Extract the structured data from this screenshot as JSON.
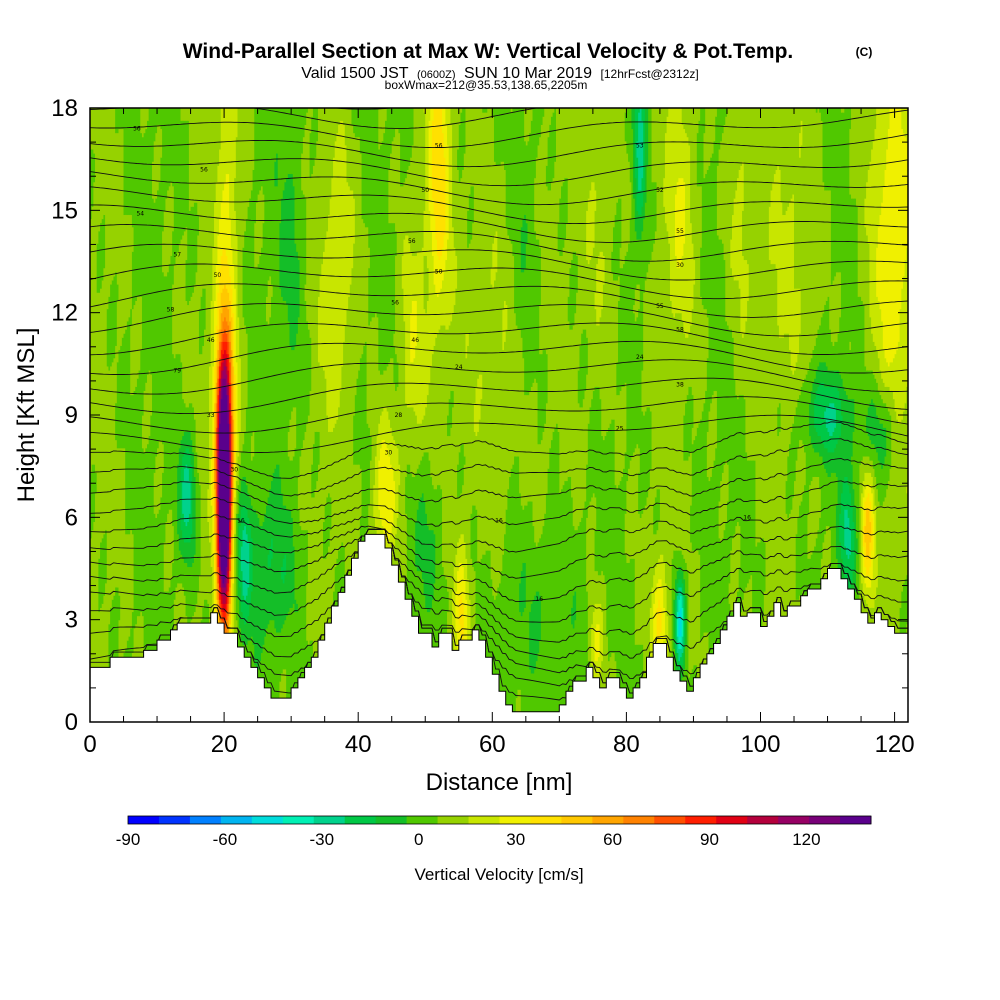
{
  "chart_data": {
    "type": "heatmap",
    "title": "Wind-Parallel Section at Max W: Vertical Velocity & Pot.Temp.",
    "title_mark": "(C)",
    "subtitle": {
      "valid_prefix": "Valid 1500 JST",
      "utc": "(0600Z)",
      "date": "SUN 10 Mar 2019",
      "forecast": "[12hrFcst@2312z]",
      "boxwmax": "boxWmax=212@35.53,138.65,2205m"
    },
    "xlabel": "Distance [nm]",
    "ylabel": "Height [Kft MSL]",
    "xlim": [
      0,
      122
    ],
    "ylim": [
      0,
      18
    ],
    "x_ticks": [
      0,
      20,
      40,
      60,
      80,
      100,
      120
    ],
    "y_ticks": [
      0,
      3,
      6,
      9,
      12,
      15,
      18
    ],
    "colorbar": {
      "label": "Vertical Velocity [cm/s]",
      "range": [
        -90,
        140
      ],
      "step": 10,
      "ticks": [
        -90,
        -60,
        -30,
        0,
        30,
        60,
        90,
        120
      ],
      "colors": [
        "#0000ff",
        "#0033ff",
        "#0080ff",
        "#00b4f0",
        "#00dcdc",
        "#00f0b4",
        "#00d28c",
        "#00c846",
        "#14be28",
        "#50c800",
        "#96d200",
        "#c8e600",
        "#f0f000",
        "#ffe100",
        "#ffc800",
        "#ffa500",
        "#ff8200",
        "#ff5000",
        "#ff1e00",
        "#e10014",
        "#b4003c",
        "#960064",
        "#780078",
        "#5a008c"
      ]
    },
    "terrain_kft": [
      [
        0,
        1.6
      ],
      [
        3,
        1.6
      ],
      [
        3,
        1.9
      ],
      [
        5,
        1.9
      ],
      [
        5,
        1.9
      ],
      [
        8,
        1.9
      ],
      [
        8,
        2.1
      ],
      [
        10,
        2.1
      ],
      [
        10,
        2.4
      ],
      [
        12,
        2.4
      ],
      [
        12,
        2.7
      ],
      [
        13,
        2.7
      ],
      [
        13,
        2.9
      ],
      [
        15,
        2.9
      ],
      [
        15,
        2.9
      ],
      [
        17,
        2.9
      ],
      [
        18,
        2.9
      ],
      [
        18,
        3.2
      ],
      [
        19,
        3.2
      ],
      [
        19,
        2.9
      ],
      [
        20,
        2.9
      ],
      [
        20,
        2.6
      ],
      [
        22,
        2.6
      ],
      [
        22,
        2.2
      ],
      [
        23,
        2.2
      ],
      [
        23,
        1.9
      ],
      [
        24,
        1.9
      ],
      [
        24,
        1.6
      ],
      [
        25,
        1.6
      ],
      [
        25,
        1.3
      ],
      [
        26,
        1.3
      ],
      [
        26,
        1.0
      ],
      [
        27,
        1.0
      ],
      [
        27,
        0.7
      ],
      [
        30,
        0.7
      ],
      [
        30,
        1.0
      ],
      [
        31,
        1.0
      ],
      [
        31,
        1.3
      ],
      [
        32,
        1.3
      ],
      [
        32,
        1.6
      ],
      [
        33,
        1.6
      ],
      [
        33,
        1.9
      ],
      [
        34,
        1.9
      ],
      [
        34,
        2.4
      ],
      [
        35,
        2.4
      ],
      [
        35,
        2.9
      ],
      [
        36,
        2.9
      ],
      [
        36,
        3.4
      ],
      [
        37,
        3.4
      ],
      [
        37,
        3.8
      ],
      [
        38,
        3.8
      ],
      [
        38,
        4.3
      ],
      [
        39,
        4.3
      ],
      [
        39,
        4.8
      ],
      [
        40,
        4.8
      ],
      [
        40,
        5.3
      ],
      [
        41,
        5.3
      ],
      [
        41,
        5.5
      ],
      [
        44,
        5.5
      ],
      [
        44,
        5.1
      ],
      [
        45,
        5.1
      ],
      [
        45,
        4.6
      ],
      [
        46,
        4.6
      ],
      [
        46,
        4.1
      ],
      [
        47,
        4.1
      ],
      [
        47,
        3.6
      ],
      [
        48,
        3.6
      ],
      [
        48,
        3.1
      ],
      [
        49,
        3.1
      ],
      [
        49,
        2.6
      ],
      [
        51,
        2.6
      ],
      [
        51,
        2.2
      ],
      [
        52,
        2.2
      ],
      [
        52,
        2.6
      ],
      [
        54,
        2.6
      ],
      [
        54,
        2.1
      ],
      [
        55,
        2.1
      ],
      [
        55,
        2.4
      ],
      [
        57,
        2.4
      ],
      [
        57,
        2.7
      ],
      [
        58,
        2.7
      ],
      [
        58,
        2.4
      ],
      [
        59,
        2.4
      ],
      [
        59,
        1.9
      ],
      [
        60,
        1.9
      ],
      [
        60,
        1.4
      ],
      [
        61,
        1.4
      ],
      [
        61,
        0.9
      ],
      [
        62,
        0.9
      ],
      [
        62,
        0.5
      ],
      [
        63,
        0.5
      ],
      [
        63,
        0.3
      ],
      [
        70,
        0.3
      ],
      [
        70,
        0.5
      ],
      [
        71,
        0.5
      ],
      [
        71,
        0.9
      ],
      [
        72,
        0.9
      ],
      [
        72,
        1.2
      ],
      [
        74,
        1.2
      ],
      [
        74,
        1.6
      ],
      [
        75,
        1.6
      ],
      [
        75,
        1.3
      ],
      [
        76,
        1.3
      ],
      [
        76,
        1.0
      ],
      [
        77,
        1.0
      ],
      [
        77,
        1.3
      ],
      [
        79,
        1.3
      ],
      [
        79,
        1.0
      ],
      [
        80,
        1.0
      ],
      [
        80,
        0.7
      ],
      [
        81,
        0.7
      ],
      [
        81,
        1.0
      ],
      [
        82,
        1.0
      ],
      [
        82,
        1.3
      ],
      [
        83,
        1.3
      ],
      [
        83,
        1.9
      ],
      [
        84,
        1.9
      ],
      [
        84,
        2.3
      ],
      [
        86,
        2.3
      ],
      [
        86,
        1.9
      ],
      [
        87,
        1.9
      ],
      [
        87,
        1.5
      ],
      [
        88,
        1.5
      ],
      [
        88,
        1.2
      ],
      [
        89,
        1.2
      ],
      [
        89,
        0.9
      ],
      [
        90,
        0.9
      ],
      [
        90,
        1.3
      ],
      [
        91,
        1.3
      ],
      [
        91,
        1.7
      ],
      [
        92,
        1.7
      ],
      [
        92,
        2.0
      ],
      [
        93,
        2.0
      ],
      [
        93,
        2.3
      ],
      [
        94,
        2.3
      ],
      [
        94,
        2.7
      ],
      [
        95,
        2.7
      ],
      [
        95,
        3.1
      ],
      [
        96,
        3.1
      ],
      [
        96,
        3.5
      ],
      [
        97,
        3.5
      ],
      [
        97,
        3.1
      ],
      [
        98,
        3.1
      ],
      [
        98,
        3.2
      ],
      [
        100,
        3.2
      ],
      [
        100,
        2.8
      ],
      [
        101,
        2.8
      ],
      [
        101,
        3.1
      ],
      [
        102,
        3.1
      ],
      [
        102,
        3.5
      ],
      [
        103,
        3.5
      ],
      [
        103,
        3.1
      ],
      [
        104,
        3.1
      ],
      [
        104,
        3.4
      ],
      [
        106,
        3.4
      ],
      [
        106,
        3.7
      ],
      [
        107,
        3.7
      ],
      [
        107,
        3.9
      ],
      [
        109,
        3.9
      ],
      [
        109,
        4.2
      ],
      [
        110,
        4.2
      ],
      [
        110,
        4.5
      ],
      [
        112,
        4.5
      ],
      [
        112,
        4.2
      ],
      [
        113,
        4.2
      ],
      [
        113,
        3.9
      ],
      [
        114,
        3.9
      ],
      [
        114,
        3.6
      ],
      [
        115,
        3.6
      ],
      [
        115,
        3.2
      ],
      [
        116,
        3.2
      ],
      [
        116,
        2.9
      ],
      [
        117,
        2.9
      ],
      [
        117,
        3.2
      ],
      [
        118,
        3.2
      ],
      [
        118,
        3.0
      ],
      [
        119,
        3.0
      ],
      [
        119,
        2.8
      ],
      [
        120,
        2.8
      ],
      [
        120,
        2.6
      ],
      [
        122,
        2.6
      ]
    ],
    "velocity_features": [
      {
        "x": 20,
        "z": 6.5,
        "sx": 0.75,
        "sz": 2.6,
        "w": 190
      },
      {
        "x": 20,
        "z": 9.3,
        "sx": 1.2,
        "sz": 2.0,
        "w": 35
      },
      {
        "x": 20.5,
        "z": 14,
        "sx": 1.2,
        "sz": 4,
        "w": 22
      },
      {
        "x": 14.5,
        "z": 6.6,
        "sx": 0.9,
        "sz": 1.3,
        "w": -35
      },
      {
        "x": 23,
        "z": 5,
        "sx": 0.7,
        "sz": 1.5,
        "w": -28
      },
      {
        "x": 27,
        "z": 4.5,
        "sx": 3,
        "sz": 1.6,
        "w": -18
      },
      {
        "x": 44,
        "z": 6.6,
        "sx": 1.3,
        "sz": 1.6,
        "w": 32
      },
      {
        "x": 48,
        "z": 11,
        "sx": 1.4,
        "sz": 2.5,
        "w": 18
      },
      {
        "x": 37,
        "z": 13,
        "sx": 2,
        "sz": 3,
        "w": 16
      },
      {
        "x": 52,
        "z": 16,
        "sx": 1.2,
        "sz": 3,
        "w": 35
      },
      {
        "x": 55.5,
        "z": 3,
        "sx": 0.8,
        "sz": 1.5,
        "w": 30
      },
      {
        "x": 50,
        "z": 5,
        "sx": 2,
        "sz": 2,
        "w": -14
      },
      {
        "x": 60,
        "z": 11,
        "sx": 3,
        "sz": 4,
        "w": 12
      },
      {
        "x": 82,
        "z": 16.8,
        "sx": 0.7,
        "sz": 2,
        "w": -35
      },
      {
        "x": 76,
        "z": 15,
        "sx": 2,
        "sz": 4,
        "w": 12
      },
      {
        "x": 88,
        "z": 3,
        "sx": 0.55,
        "sz": 1.0,
        "w": -55
      },
      {
        "x": 85,
        "z": 3,
        "sx": 0.8,
        "sz": 1.2,
        "w": 30
      },
      {
        "x": 88,
        "z": 15,
        "sx": 1.6,
        "sz": 3,
        "w": 18
      },
      {
        "x": 97,
        "z": 15,
        "sx": 1.5,
        "sz": 3,
        "w": 14
      },
      {
        "x": 110,
        "z": 9,
        "sx": 2.5,
        "sz": 0.9,
        "w": -28
      },
      {
        "x": 118,
        "z": 8.5,
        "sx": 2,
        "sz": 1.1,
        "w": -20
      },
      {
        "x": 113,
        "z": 5.5,
        "sx": 0.9,
        "sz": 1.3,
        "w": -30
      },
      {
        "x": 116,
        "z": 5.5,
        "sx": 0.7,
        "sz": 1.3,
        "w": 42
      },
      {
        "x": 120,
        "z": 14,
        "sx": 2.5,
        "sz": 4,
        "w": 26
      },
      {
        "x": 105,
        "z": 14,
        "sx": 3,
        "sz": 3,
        "w": 10
      },
      {
        "x": 68,
        "z": 3,
        "sx": 4,
        "sz": 2,
        "w": -12
      },
      {
        "x": 75.5,
        "z": 2.3,
        "sx": 0.8,
        "sz": 1.0,
        "w": 25
      },
      {
        "x": 30,
        "z": 14,
        "sx": 1.5,
        "sz": 3,
        "w": -12
      },
      {
        "x": 65,
        "z": 14,
        "sx": 1.5,
        "sz": 3,
        "w": -10
      }
    ],
    "pot_temp_contour_labels": [
      {
        "x": 7,
        "z": 17.4,
        "text": "56"
      },
      {
        "x": 17,
        "z": 16.2,
        "text": "56"
      },
      {
        "x": 7.5,
        "z": 14.9,
        "text": "54"
      },
      {
        "x": 13,
        "z": 13.7,
        "text": "57"
      },
      {
        "x": 19,
        "z": 13.1,
        "text": "50"
      },
      {
        "x": 12,
        "z": 12.1,
        "text": "58"
      },
      {
        "x": 18,
        "z": 11.2,
        "text": "46"
      },
      {
        "x": 13,
        "z": 10.3,
        "text": "79"
      },
      {
        "x": 18,
        "z": 9.0,
        "text": "33"
      },
      {
        "x": 21.5,
        "z": 7.4,
        "text": "30"
      },
      {
        "x": 22.5,
        "z": 5.9,
        "text": "16"
      },
      {
        "x": 52,
        "z": 16.9,
        "text": "56"
      },
      {
        "x": 50,
        "z": 15.6,
        "text": "50"
      },
      {
        "x": 48,
        "z": 14.1,
        "text": "56"
      },
      {
        "x": 52,
        "z": 13.2,
        "text": "50"
      },
      {
        "x": 45.5,
        "z": 12.3,
        "text": "56"
      },
      {
        "x": 48.5,
        "z": 11.2,
        "text": "46"
      },
      {
        "x": 55,
        "z": 10.4,
        "text": "24"
      },
      {
        "x": 46,
        "z": 9.0,
        "text": "28"
      },
      {
        "x": 44.5,
        "z": 7.9,
        "text": "30"
      },
      {
        "x": 61,
        "z": 5.9,
        "text": "16"
      },
      {
        "x": 67,
        "z": 3.6,
        "text": "16"
      },
      {
        "x": 82,
        "z": 16.9,
        "text": "53"
      },
      {
        "x": 85,
        "z": 15.6,
        "text": "52"
      },
      {
        "x": 88,
        "z": 14.4,
        "text": "55"
      },
      {
        "x": 88,
        "z": 13.4,
        "text": "30"
      },
      {
        "x": 85,
        "z": 12.2,
        "text": "55"
      },
      {
        "x": 88,
        "z": 11.5,
        "text": "58"
      },
      {
        "x": 82,
        "z": 10.7,
        "text": "24"
      },
      {
        "x": 88,
        "z": 9.9,
        "text": "38"
      },
      {
        "x": 79,
        "z": 8.6,
        "text": "25"
      },
      {
        "x": 98,
        "z": 6.0,
        "text": "16"
      }
    ]
  }
}
